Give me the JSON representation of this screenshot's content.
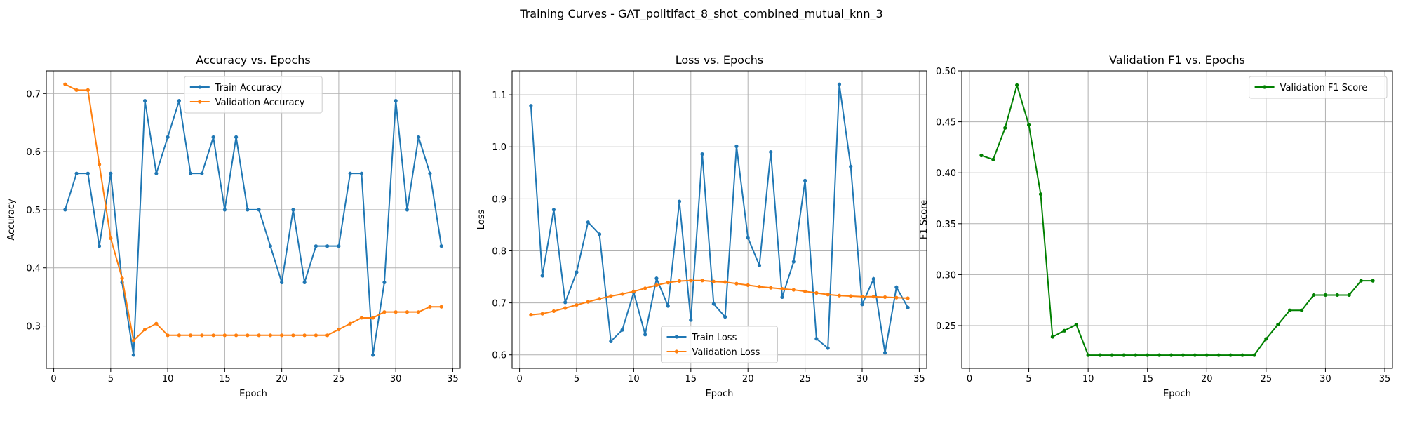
{
  "figure": {
    "suptitle": "Training Curves - GAT_politifact_8_shot_combined_mutual_knn_3"
  },
  "chart_data": [
    {
      "type": "line",
      "title": "Accuracy vs. Epochs",
      "xlabel": "Epoch",
      "ylabel": "Accuracy",
      "xlim": [
        -0.65,
        35.65
      ],
      "ylim": [
        0.227,
        0.739
      ],
      "xticks": [
        0,
        5,
        10,
        15,
        20,
        25,
        30,
        35
      ],
      "yticks": [
        0.3,
        0.4,
        0.5,
        0.6,
        0.7
      ],
      "ytick_labels": [
        "0.3",
        "0.4",
        "0.5",
        "0.6",
        "0.7"
      ],
      "grid": true,
      "legend": "upper center",
      "x": [
        1,
        2,
        3,
        4,
        5,
        6,
        7,
        8,
        9,
        10,
        11,
        12,
        13,
        14,
        15,
        16,
        17,
        18,
        19,
        20,
        21,
        22,
        23,
        24,
        25,
        26,
        27,
        28,
        29,
        30,
        31,
        32,
        33,
        34
      ],
      "series": [
        {
          "name": "Train Accuracy",
          "color": "#1f77b4",
          "values": [
            0.5,
            0.5625,
            0.5625,
            0.4375,
            0.5625,
            0.375,
            0.25,
            0.6875,
            0.5625,
            0.625,
            0.6875,
            0.5625,
            0.5625,
            0.625,
            0.5,
            0.625,
            0.5,
            0.5,
            0.4375,
            0.375,
            0.5,
            0.375,
            0.4375,
            0.4375,
            0.4375,
            0.5625,
            0.5625,
            0.25,
            0.375,
            0.6875,
            0.5,
            0.625,
            0.5625,
            0.4375
          ]
        },
        {
          "name": "Validation Accuracy",
          "color": "#ff7f0e",
          "values": [
            0.716,
            0.706,
            0.706,
            0.578,
            0.451,
            0.382,
            0.275,
            0.294,
            0.304,
            0.284,
            0.284,
            0.284,
            0.284,
            0.284,
            0.284,
            0.284,
            0.284,
            0.284,
            0.284,
            0.284,
            0.284,
            0.284,
            0.284,
            0.284,
            0.294,
            0.304,
            0.314,
            0.314,
            0.324,
            0.324,
            0.324,
            0.324,
            0.333,
            0.333
          ]
        }
      ]
    },
    {
      "type": "line",
      "title": "Loss vs. Epochs",
      "xlabel": "Epoch",
      "ylabel": "Loss",
      "xlim": [
        -0.65,
        35.65
      ],
      "ylim": [
        0.574,
        1.146
      ],
      "xticks": [
        0,
        5,
        10,
        15,
        20,
        25,
        30,
        35
      ],
      "yticks": [
        0.6,
        0.7,
        0.8,
        0.9,
        1.0,
        1.1
      ],
      "ytick_labels": [
        "0.6",
        "0.7",
        "0.8",
        "0.9",
        "1.0",
        "1.1"
      ],
      "grid": true,
      "legend": "lower center",
      "x": [
        1,
        2,
        3,
        4,
        5,
        6,
        7,
        8,
        9,
        10,
        11,
        12,
        13,
        14,
        15,
        16,
        17,
        18,
        19,
        20,
        21,
        22,
        23,
        24,
        25,
        26,
        27,
        28,
        29,
        30,
        31,
        32,
        33,
        34
      ],
      "series": [
        {
          "name": "Train Loss",
          "color": "#1f77b4",
          "values": [
            1.079,
            0.752,
            0.879,
            0.701,
            0.759,
            0.855,
            0.832,
            0.626,
            0.648,
            0.72,
            0.639,
            0.747,
            0.694,
            0.895,
            0.667,
            0.986,
            0.698,
            0.673,
            1.001,
            0.825,
            0.772,
            0.99,
            0.711,
            0.779,
            0.935,
            0.631,
            0.613,
            1.12,
            0.962,
            0.697,
            0.746,
            0.604,
            0.73,
            0.691
          ]
        },
        {
          "name": "Validation Loss",
          "color": "#ff7f0e",
          "values": [
            0.677,
            0.679,
            0.684,
            0.69,
            0.696,
            0.702,
            0.708,
            0.713,
            0.717,
            0.722,
            0.728,
            0.734,
            0.739,
            0.742,
            0.743,
            0.743,
            0.741,
            0.74,
            0.737,
            0.734,
            0.731,
            0.729,
            0.727,
            0.725,
            0.722,
            0.719,
            0.716,
            0.714,
            0.713,
            0.712,
            0.712,
            0.711,
            0.71,
            0.709
          ]
        }
      ]
    },
    {
      "type": "line",
      "title": "Validation F1 vs. Epochs",
      "xlabel": "Epoch",
      "ylabel": "F1 Score",
      "xlim": [
        -0.65,
        35.65
      ],
      "ylim": [
        0.208,
        0.5
      ],
      "xticks": [
        0,
        5,
        10,
        15,
        20,
        25,
        30,
        35
      ],
      "yticks": [
        0.25,
        0.3,
        0.35,
        0.4,
        0.45,
        0.5
      ],
      "ytick_labels": [
        "0.25",
        "0.30",
        "0.35",
        "0.40",
        "0.45",
        "0.50"
      ],
      "grid": true,
      "legend": "upper right",
      "x": [
        1,
        2,
        3,
        4,
        5,
        6,
        7,
        8,
        9,
        10,
        11,
        12,
        13,
        14,
        15,
        16,
        17,
        18,
        19,
        20,
        21,
        22,
        23,
        24,
        25,
        26,
        27,
        28,
        29,
        30,
        31,
        32,
        33,
        34
      ],
      "series": [
        {
          "name": "Validation F1 Score",
          "color": "#008000",
          "values": [
            0.417,
            0.413,
            0.444,
            0.486,
            0.447,
            0.379,
            0.239,
            0.245,
            0.251,
            0.221,
            0.221,
            0.221,
            0.221,
            0.221,
            0.221,
            0.221,
            0.221,
            0.221,
            0.221,
            0.221,
            0.221,
            0.221,
            0.221,
            0.221,
            0.237,
            0.251,
            0.265,
            0.265,
            0.28,
            0.28,
            0.28,
            0.28,
            0.294,
            0.294
          ]
        }
      ]
    }
  ]
}
